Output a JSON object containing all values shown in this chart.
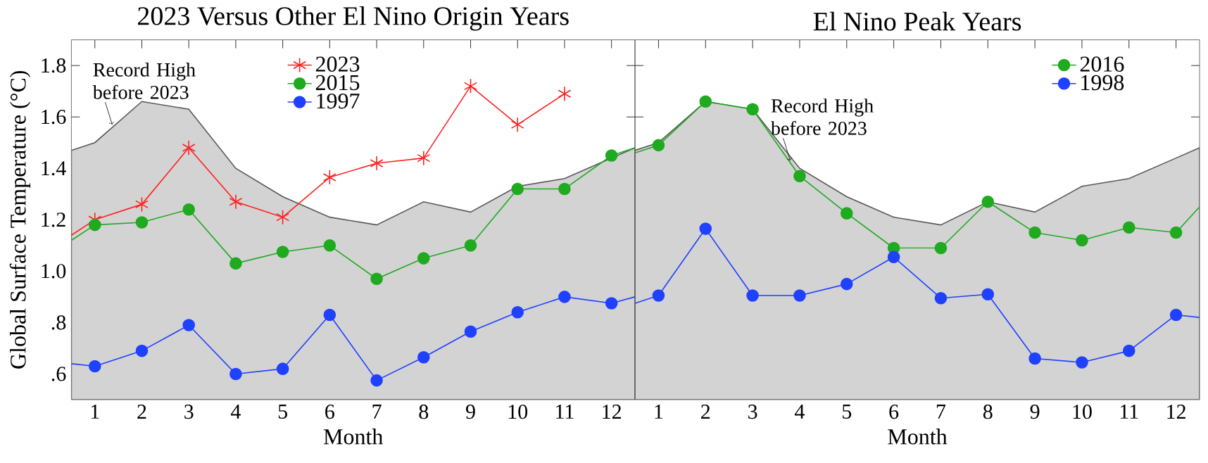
{
  "chart_data": [
    {
      "type": "line",
      "title": "2023 Versus Other El Nino Origin Years",
      "xlabel": "Month",
      "ylabel": "Global Surface Temperature (°C)",
      "xlim": [
        0.5,
        12.5
      ],
      "xticks": [
        1,
        2,
        3,
        4,
        5,
        6,
        7,
        8,
        9,
        10,
        11,
        12
      ],
      "ylim": [
        0.5,
        1.9
      ],
      "yticks": [
        {
          "value": 0.6,
          "label": ".6"
        },
        {
          "value": 0.8,
          "label": ".8"
        },
        {
          "value": 1.0,
          "label": "1.0"
        },
        1.2,
        1.4,
        1.6,
        1.8
      ],
      "legend": "top",
      "grid": false,
      "annotations": [
        {
          "text": "Record High before 2023",
          "x": 1.37,
          "y": 1.57
        }
      ],
      "series": [
        {
          "type": "area",
          "color": "#d3d3d3",
          "x": [
            0.5,
            1,
            2,
            3,
            4,
            5,
            6,
            7,
            8,
            9,
            10,
            11,
            12,
            12.5
          ],
          "values": [
            1.47,
            1.5,
            1.66,
            1.63,
            1.4,
            1.29,
            1.21,
            1.18,
            1.27,
            1.23,
            1.33,
            1.36,
            1.44,
            1.48
          ]
        },
        {
          "name": "2023",
          "color": "#ff2020",
          "x": [
            0.5,
            1,
            2,
            3,
            4,
            5,
            6,
            7,
            8,
            9,
            10,
            11
          ],
          "values": [
            1.14,
            1.2,
            1.26,
            1.48,
            1.27,
            1.21,
            1.365,
            1.42,
            1.44,
            1.72,
            1.57,
            1.69
          ],
          "marker": "cross"
        },
        {
          "name": "2015",
          "color": "#1faa1f",
          "x": [
            0.5,
            1,
            2,
            3,
            4,
            5,
            6,
            7,
            8,
            9,
            10,
            11,
            12,
            12.5
          ],
          "values": [
            1.12,
            1.18,
            1.19,
            1.24,
            1.03,
            1.075,
            1.1,
            0.97,
            1.05,
            1.1,
            1.32,
            1.32,
            1.45,
            1.48
          ],
          "marker": "circle"
        },
        {
          "name": "1997",
          "color": "#2040ff",
          "x": [
            0.5,
            1,
            2,
            3,
            4,
            5,
            6,
            7,
            8,
            9,
            10,
            11,
            12,
            12.5
          ],
          "values": [
            0.64,
            0.63,
            0.69,
            0.79,
            0.6,
            0.62,
            0.83,
            0.575,
            0.665,
            0.765,
            0.84,
            0.9,
            0.875,
            0.9
          ],
          "marker": "circle"
        }
      ]
    },
    {
      "type": "line",
      "title": "El Nino Peak Years",
      "xlabel": "Month",
      "xlim": [
        0.5,
        12.5
      ],
      "xticks": [
        1,
        2,
        3,
        4,
        5,
        6,
        7,
        8,
        9,
        10,
        11,
        12
      ],
      "ylim": [
        0.5,
        1.9
      ],
      "yticks": [
        {
          "value": 0.6,
          "label": null
        },
        {
          "value": 0.8,
          "label": null
        },
        {
          "value": 1.0,
          "label": null
        },
        {
          "value": 1.2,
          "label": null
        },
        {
          "value": 1.4,
          "label": null
        },
        {
          "value": 1.6,
          "label": null
        },
        {
          "value": 1.8,
          "label": null
        }
      ],
      "tick_labels": "x",
      "legend": "top right",
      "grid": false,
      "annotations": [
        {
          "text": "Record High before 2023",
          "x": 3.8,
          "y": 1.43
        }
      ],
      "series": [
        {
          "type": "area",
          "color": "#d3d3d3",
          "x": [
            0.5,
            1,
            2,
            3,
            4,
            5,
            6,
            7,
            8,
            9,
            10,
            11,
            12,
            12.5
          ],
          "values": [
            1.47,
            1.5,
            1.66,
            1.63,
            1.4,
            1.29,
            1.21,
            1.18,
            1.27,
            1.23,
            1.33,
            1.36,
            1.44,
            1.48
          ]
        },
        {
          "name": "2016",
          "color": "#1faa1f",
          "x": [
            0.5,
            1,
            2,
            3,
            4,
            5,
            6,
            7,
            8,
            9,
            10,
            11,
            12,
            12.5
          ],
          "values": [
            1.46,
            1.49,
            1.66,
            1.63,
            1.37,
            1.225,
            1.09,
            1.09,
            1.27,
            1.15,
            1.12,
            1.17,
            1.15,
            1.25
          ],
          "marker": "circle"
        },
        {
          "name": "1998",
          "color": "#2040ff",
          "x": [
            0.5,
            1,
            2,
            3,
            4,
            5,
            6,
            7,
            8,
            9,
            10,
            11,
            12,
            12.5
          ],
          "values": [
            0.875,
            0.905,
            1.165,
            0.905,
            0.905,
            0.95,
            1.055,
            0.895,
            0.91,
            0.66,
            0.645,
            0.69,
            0.83,
            0.82
          ],
          "marker": "circle"
        }
      ]
    }
  ]
}
